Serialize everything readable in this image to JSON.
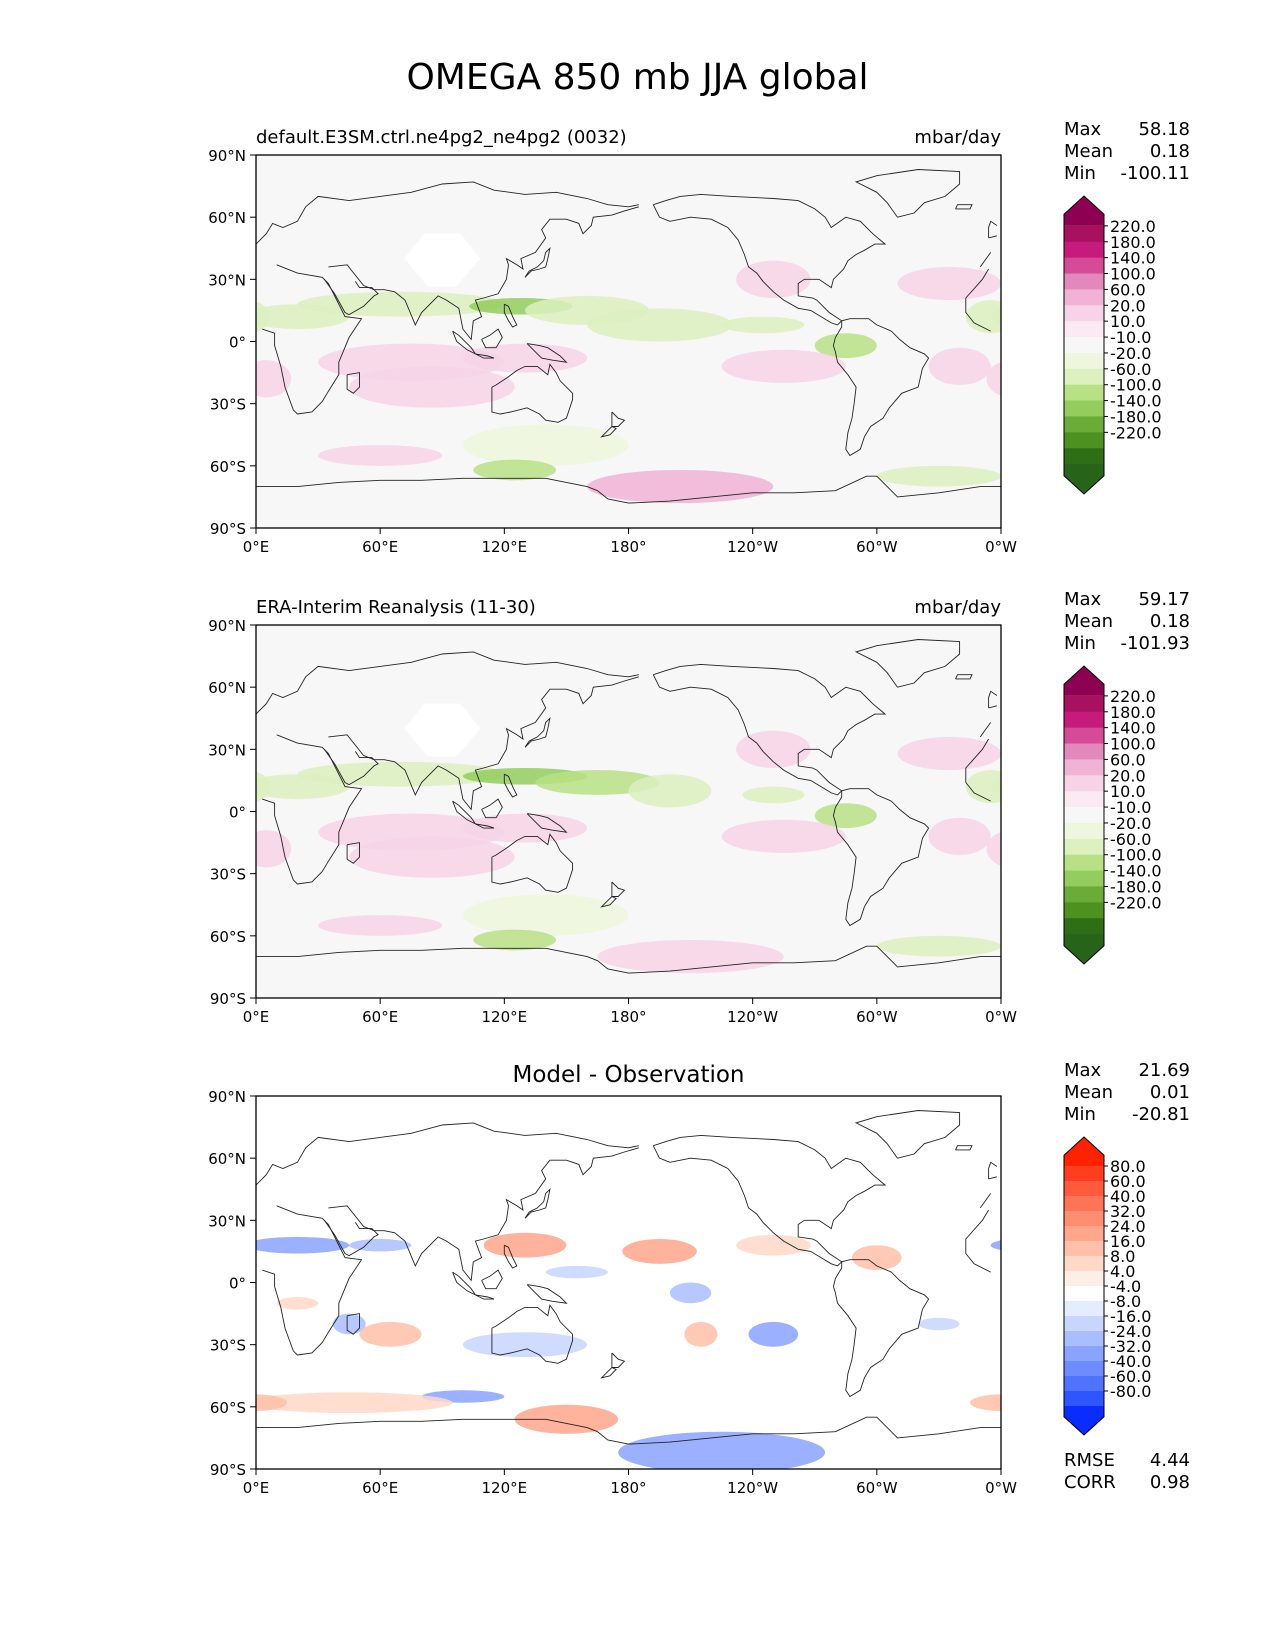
{
  "figure": {
    "title": "OMEGA 850 mb JJA global",
    "lat_ticks": [
      "90°N",
      "60°N",
      "30°N",
      "0°",
      "30°S",
      "60°S",
      "90°S"
    ],
    "lon_ticks": [
      "0°E",
      "60°E",
      "120°E",
      "180°",
      "120°W",
      "60°W",
      "0°W"
    ],
    "panels": [
      {
        "id": "model",
        "left_title": "default.E3SM.ctrl.ne4pg2_ne4pg2 (0032)",
        "center_title": "",
        "units": "mbar/day",
        "stats": [
          {
            "label": "Max",
            "value": "58.18"
          },
          {
            "label": "Mean",
            "value": "0.18"
          },
          {
            "label": "Min",
            "value": "-100.11"
          }
        ],
        "colorbar": {
          "labels": [
            "220.0",
            "180.0",
            "140.0",
            "100.0",
            "60.0",
            "20.0",
            "10.0",
            "-10.0",
            "-20.0",
            "-60.0",
            "-100.0",
            "-140.0",
            "-180.0",
            "-220.0"
          ],
          "colors": [
            "#8e0152",
            "#a8115f",
            "#c51b7d",
            "#d64b97",
            "#e188bd",
            "#f0b3d6",
            "#f7d3e8",
            "#fbeaf2",
            "#f7f7f7",
            "#eef7dd",
            "#dcf0c0",
            "#b8e186",
            "#93cd5d",
            "#6aac37",
            "#4d9221",
            "#2e6e16",
            "#276419"
          ],
          "scale": "diverging PiYG"
        }
      },
      {
        "id": "obs",
        "left_title": "ERA-Interim Reanalysis (11-30)",
        "center_title": "",
        "units": "mbar/day",
        "stats": [
          {
            "label": "Max",
            "value": "59.17"
          },
          {
            "label": "Mean",
            "value": "0.18"
          },
          {
            "label": "Min",
            "value": "-101.93"
          }
        ],
        "colorbar": {
          "labels": [
            "220.0",
            "180.0",
            "140.0",
            "100.0",
            "60.0",
            "20.0",
            "10.0",
            "-10.0",
            "-20.0",
            "-60.0",
            "-100.0",
            "-140.0",
            "-180.0",
            "-220.0"
          ],
          "colors": [
            "#8e0152",
            "#a8115f",
            "#c51b7d",
            "#d64b97",
            "#e188bd",
            "#f0b3d6",
            "#f7d3e8",
            "#fbeaf2",
            "#f7f7f7",
            "#eef7dd",
            "#dcf0c0",
            "#b8e186",
            "#93cd5d",
            "#6aac37",
            "#4d9221",
            "#2e6e16",
            "#276419"
          ],
          "scale": "diverging PiYG"
        }
      },
      {
        "id": "diff",
        "left_title": "",
        "center_title": "Model - Observation",
        "units": "",
        "stats": [
          {
            "label": "Max",
            "value": "21.69"
          },
          {
            "label": "Mean",
            "value": "0.01"
          },
          {
            "label": "Min",
            "value": "-20.81"
          }
        ],
        "extra_stats": [
          {
            "label": "RMSE",
            "value": "4.44"
          },
          {
            "label": "CORR",
            "value": "0.98"
          }
        ],
        "colorbar": {
          "labels": [
            "80.0",
            "60.0",
            "40.0",
            "32.0",
            "24.0",
            "16.0",
            "8.0",
            "4.0",
            "-4.0",
            "-8.0",
            "-16.0",
            "-24.0",
            "-32.0",
            "-40.0",
            "-60.0",
            "-80.0"
          ],
          "colors": [
            "#ff2200",
            "#ff3e1f",
            "#ff5a3c",
            "#ff7456",
            "#ff8e70",
            "#ffa68b",
            "#ffbfa8",
            "#ffd8c8",
            "#ffeee6",
            "#ffffff",
            "#e4ecff",
            "#c8d6ff",
            "#aabdff",
            "#8aa3ff",
            "#6e8cff",
            "#4f72ff",
            "#2f55ff",
            "#0a2cff"
          ],
          "scale": "diverging blue-white-red"
        }
      }
    ]
  }
}
